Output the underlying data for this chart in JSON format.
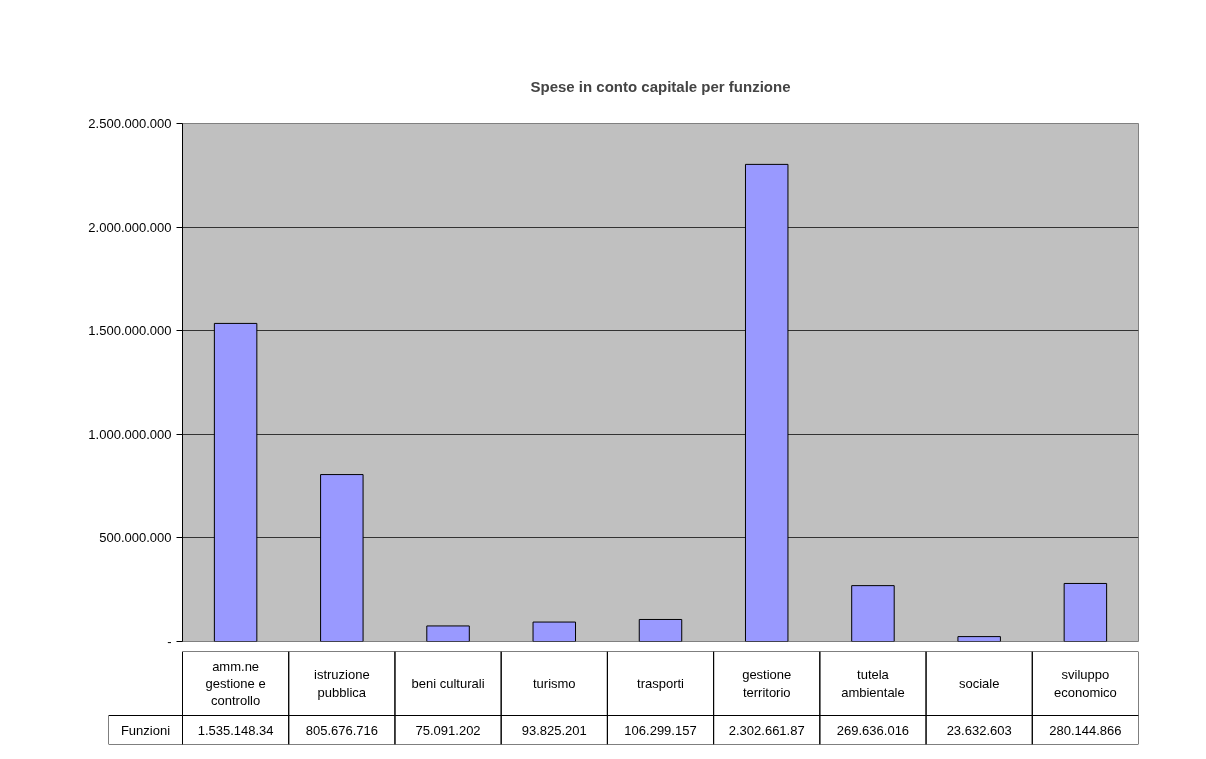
{
  "chart_data": {
    "type": "bar",
    "title": "Spese in conto capitale per funzione",
    "categories": [
      "amm.ne gestione e controllo",
      "istruzione pubblica",
      "beni culturali",
      "turismo",
      "trasporti",
      "gestione territorio",
      "tutela ambientale",
      "sociale",
      "sviluppo economico"
    ],
    "series": [
      {
        "name": "Funzioni",
        "color": "#9999ff",
        "values": [
          1535148340,
          805676716,
          75091202,
          93825201,
          106299157,
          2302661870,
          269636016,
          23632603,
          280144866
        ],
        "value_labels": [
          "1.535.148.34",
          "805.676.716",
          "75.091.202",
          "93.825.201",
          "106.299.157",
          "2.302.661.87",
          "269.636.016",
          "23.632.603",
          "280.144.866"
        ]
      }
    ],
    "ylim": [
      0,
      2500000000
    ],
    "yticks": [
      {
        "value": 0,
        "label": "-"
      },
      {
        "value": 500000000,
        "label": "500.000.000"
      },
      {
        "value": 1000000000,
        "label": "1.000.000.000"
      },
      {
        "value": 1500000000,
        "label": "1.500.000.000"
      },
      {
        "value": 2000000000,
        "label": "2.000.000.000"
      },
      {
        "value": 2500000000,
        "label": "2.500.000.000"
      }
    ],
    "grid": "y"
  }
}
